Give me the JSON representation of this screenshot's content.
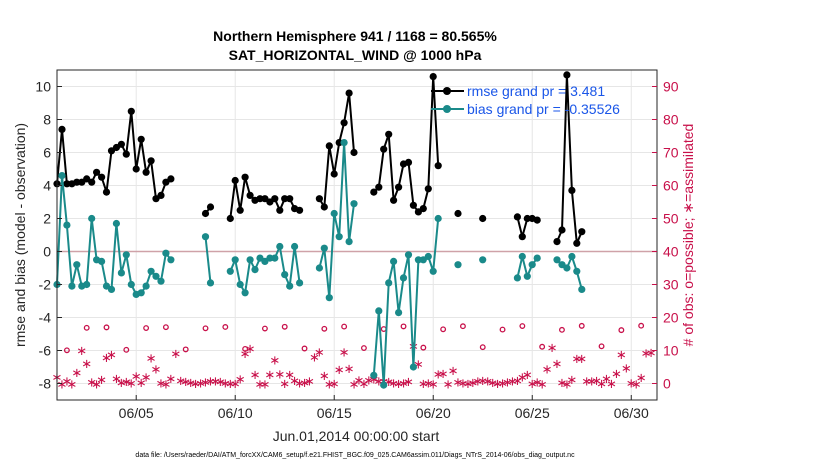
{
  "chart_data": {
    "type": "line",
    "title": "Northern Hemisphere 941 / 1168 = 80.565%",
    "subtitle": "SAT_HORIZONTAL_WIND @ 1000 hPa",
    "xlabel": "Jun.01,2014 00:00:00 start",
    "ylabel": "rmse and bias (model - observation)",
    "ylabel_right": "# of obs: o=possible; ∗=assimilated",
    "xlim": [
      1,
      31.3
    ],
    "ylim": [
      -9,
      11
    ],
    "ylim_right": [
      -5,
      95
    ],
    "xticks": [
      5,
      10,
      15,
      20,
      25,
      30
    ],
    "xtick_labels": [
      "06/05",
      "06/10",
      "06/15",
      "06/20",
      "06/25",
      "06/30"
    ],
    "yticks": [
      -8,
      -6,
      -4,
      -2,
      0,
      2,
      4,
      6,
      8,
      10
    ],
    "ytick_labels": [
      "-8",
      "-6",
      "-4",
      "-2",
      "0",
      "2",
      "4",
      "6",
      "8",
      "10"
    ],
    "yticks_right": [
      0,
      10,
      20,
      30,
      40,
      50,
      60,
      70,
      80,
      90
    ],
    "ytick_labels_right": [
      "0",
      "10",
      "20",
      "30",
      "40",
      "50",
      "60",
      "70",
      "80",
      "90"
    ],
    "grid": true,
    "legend_location": "top-right",
    "zero_line": 0,
    "footer": "data file: /Users/raeder/DAI/ATM_forcXX/CAM6_setup/f.e21.FHIST_BGC.f09_025.CAM6assim.011/Diags_NTrS_2014-06/obs_diag_output.nc",
    "colors": {
      "rmse": "#000000",
      "bias": "#1a8a8a",
      "count": "#c8104a",
      "legend_text": "#1a56e8",
      "zero": "#cfa2a8"
    },
    "series": [
      {
        "name": "rmse grand pr = 3.481",
        "key": "rmse",
        "points": [
          [
            1,
            4.1
          ],
          [
            1.25,
            7.4
          ],
          [
            1.5,
            4.1
          ],
          [
            1.75,
            4.1
          ],
          [
            2,
            4.2
          ],
          [
            2.25,
            4.2
          ],
          [
            2.5,
            4.4
          ],
          [
            2.75,
            4.2
          ],
          [
            3,
            4.8
          ],
          [
            3.25,
            4.5
          ],
          [
            3.5,
            3.6
          ],
          [
            3.75,
            6.1
          ],
          [
            4,
            6.3
          ],
          [
            4.25,
            6.5
          ],
          [
            4.5,
            5.9
          ],
          [
            4.75,
            8.5
          ],
          [
            5,
            5.0
          ],
          [
            5.25,
            6.8
          ],
          [
            5.5,
            4.8
          ],
          [
            5.75,
            5.5
          ],
          [
            6,
            3.2
          ],
          [
            6.25,
            3.4
          ],
          [
            6.5,
            4.2
          ],
          [
            6.75,
            4.4
          ],
          null,
          [
            8.5,
            2.3
          ],
          [
            8.75,
            2.7
          ],
          null,
          [
            9.75,
            2.0
          ],
          [
            10,
            4.3
          ],
          [
            10.25,
            2.5
          ],
          [
            10.5,
            4.5
          ],
          [
            10.75,
            3.4
          ],
          [
            11,
            3.1
          ],
          [
            11.25,
            3.2
          ],
          [
            11.5,
            3.2
          ],
          [
            11.75,
            3.0
          ],
          [
            12,
            3.2
          ],
          [
            12.25,
            2.5
          ],
          [
            12.5,
            3.2
          ],
          [
            12.75,
            3.2
          ],
          [
            13,
            2.6
          ],
          [
            13.25,
            2.5
          ],
          null,
          [
            14.25,
            3.2
          ],
          [
            14.5,
            2.7
          ],
          [
            14.75,
            6.4
          ],
          [
            15,
            4.7
          ],
          [
            15.25,
            6.6
          ],
          [
            15.5,
            7.8
          ],
          [
            15.75,
            9.6
          ],
          [
            16,
            6.0
          ],
          null,
          [
            17,
            3.6
          ],
          [
            17.25,
            3.9
          ],
          [
            17.5,
            6.2
          ],
          [
            17.75,
            7.1
          ],
          [
            18,
            3.1
          ],
          [
            18.25,
            3.9
          ],
          [
            18.5,
            5.3
          ],
          [
            18.75,
            5.4
          ],
          [
            19,
            2.8
          ],
          [
            19.25,
            2.4
          ],
          [
            19.5,
            2.6
          ],
          [
            19.75,
            3.8
          ],
          [
            20,
            10.6
          ],
          [
            20.25,
            5.2
          ],
          null,
          [
            21.25,
            2.3
          ],
          null,
          [
            22.5,
            2.0
          ],
          null,
          [
            24.25,
            2.1
          ],
          [
            24.5,
            0.9
          ],
          [
            24.75,
            2.0
          ],
          [
            25,
            2.0
          ],
          [
            25.25,
            1.9
          ],
          null,
          [
            26.25,
            0.6
          ],
          [
            26.5,
            1.3
          ],
          [
            26.75,
            10.7
          ],
          [
            27,
            3.7
          ],
          [
            27.25,
            0.5
          ],
          [
            27.5,
            1.2
          ]
        ]
      },
      {
        "name": "bias grand pr = -0.35526",
        "key": "bias",
        "points": [
          [
            1,
            -2.0
          ],
          [
            1.25,
            4.6
          ],
          [
            1.5,
            1.6
          ],
          [
            1.75,
            -2.1
          ],
          [
            2,
            -0.8
          ],
          [
            2.25,
            -2.1
          ],
          [
            2.5,
            -2.0
          ],
          [
            2.75,
            2.0
          ],
          [
            3,
            -0.5
          ],
          [
            3.25,
            -0.6
          ],
          [
            3.5,
            -2.1
          ],
          [
            3.75,
            -2.3
          ],
          [
            4,
            1.7
          ],
          [
            4.25,
            -1.3
          ],
          [
            4.5,
            -0.2
          ],
          [
            4.75,
            -2.0
          ],
          [
            5,
            -2.6
          ],
          [
            5.25,
            -2.5
          ],
          [
            5.5,
            -2.1
          ],
          [
            5.75,
            -1.2
          ],
          [
            6,
            -1.5
          ],
          [
            6.25,
            -1.8
          ],
          [
            6.5,
            -0.1
          ],
          [
            6.75,
            -0.5
          ],
          null,
          [
            8.5,
            0.9
          ],
          [
            8.75,
            -1.9
          ],
          null,
          [
            9.75,
            -1.2
          ],
          [
            10,
            -0.5
          ],
          [
            10.25,
            -2.0
          ],
          [
            10.5,
            -2.5
          ],
          [
            10.75,
            -0.5
          ],
          [
            11,
            -1.1
          ],
          [
            11.25,
            -0.4
          ],
          [
            11.5,
            -0.6
          ],
          [
            11.75,
            -0.4
          ],
          [
            12,
            -0.4
          ],
          [
            12.25,
            0.3
          ],
          [
            12.5,
            -1.4
          ],
          [
            12.75,
            -2.1
          ],
          [
            13,
            0.3
          ],
          [
            13.25,
            -1.9
          ],
          null,
          [
            14.25,
            -1.0
          ],
          [
            14.5,
            0.2
          ],
          [
            14.75,
            -2.8
          ],
          [
            15,
            2.3
          ],
          [
            15.25,
            0.9
          ],
          [
            15.5,
            6.6
          ],
          [
            15.75,
            0.6
          ],
          [
            16,
            2.9
          ],
          null,
          [
            17,
            -7.5
          ],
          [
            17.25,
            -3.6
          ],
          [
            17.5,
            -8.1
          ],
          [
            17.75,
            -1.9
          ],
          [
            18,
            -0.6
          ],
          [
            18.25,
            -3.7
          ],
          [
            18.5,
            -1.6
          ],
          [
            18.75,
            -0.2
          ],
          [
            19,
            -7.0
          ],
          [
            19.25,
            -0.5
          ],
          [
            19.5,
            -0.5
          ],
          [
            19.75,
            -0.3
          ],
          [
            20,
            -1.2
          ],
          [
            20.25,
            2.0
          ],
          null,
          [
            21.25,
            -0.8
          ],
          null,
          [
            22.5,
            -0.5
          ],
          null,
          [
            24.25,
            -1.6
          ],
          [
            24.5,
            -0.3
          ],
          [
            24.75,
            -1.5
          ],
          [
            25,
            -0.8
          ],
          [
            25.25,
            -0.4
          ],
          null,
          [
            26.25,
            -0.5
          ],
          [
            26.5,
            -0.8
          ],
          [
            26.75,
            -1.0
          ],
          [
            27,
            -0.3
          ],
          [
            27.25,
            -1.2
          ],
          [
            27.5,
            -2.3
          ]
        ]
      }
    ]
  }
}
